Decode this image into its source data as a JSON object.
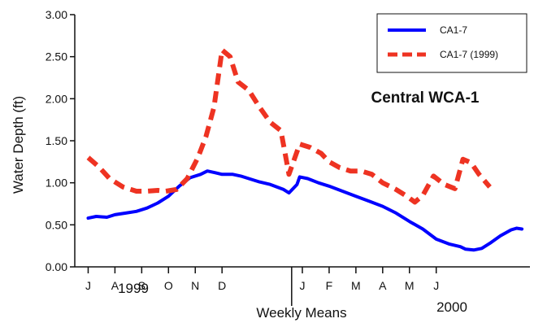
{
  "chart_data": {
    "type": "line",
    "ylabel": "Water Depth (ft)",
    "xlabel": "Weekly Means",
    "ylim": [
      0,
      3
    ],
    "yticks": [
      "0.00",
      "0.50",
      "1.00",
      "1.50",
      "2.00",
      "2.50",
      "3.00"
    ],
    "month_ticks": [
      "J",
      "A",
      "S",
      "O",
      "N",
      "D",
      "J",
      "F",
      "M",
      "A",
      "M",
      "J"
    ],
    "year_labels": [
      "1999",
      "2000"
    ],
    "annotation": "Central WCA-1",
    "legend_position": "top-right",
    "series": [
      {
        "name": "CA1-7",
        "color": "#0000ff",
        "style": "solid",
        "points": [
          [
            1.0,
            0.58
          ],
          [
            1.3,
            0.6
          ],
          [
            1.7,
            0.59
          ],
          [
            2.0,
            0.62
          ],
          [
            2.4,
            0.64
          ],
          [
            2.8,
            0.66
          ],
          [
            3.2,
            0.7
          ],
          [
            3.6,
            0.76
          ],
          [
            4.0,
            0.84
          ],
          [
            4.4,
            0.96
          ],
          [
            4.8,
            1.06
          ],
          [
            5.2,
            1.1
          ],
          [
            5.45,
            1.14
          ],
          [
            5.75,
            1.12
          ],
          [
            6.0,
            1.1
          ],
          [
            6.4,
            1.1
          ],
          [
            6.7,
            1.08
          ],
          [
            7.0,
            1.05
          ],
          [
            7.4,
            1.01
          ],
          [
            7.8,
            0.98
          ],
          [
            8.3,
            0.92
          ],
          [
            8.5,
            0.88
          ],
          [
            8.8,
            0.98
          ],
          [
            8.9,
            1.07
          ],
          [
            9.2,
            1.05
          ],
          [
            9.6,
            1.0
          ],
          [
            10.0,
            0.96
          ],
          [
            10.5,
            0.9
          ],
          [
            11.0,
            0.84
          ],
          [
            11.5,
            0.78
          ],
          [
            12.0,
            0.72
          ],
          [
            12.5,
            0.64
          ],
          [
            13.0,
            0.54
          ],
          [
            13.5,
            0.45
          ],
          [
            14.0,
            0.33
          ],
          [
            14.5,
            0.27
          ],
          [
            14.9,
            0.24
          ],
          [
            15.1,
            0.21
          ],
          [
            15.4,
            0.2
          ],
          [
            15.7,
            0.22
          ],
          [
            16.0,
            0.28
          ],
          [
            16.4,
            0.37
          ],
          [
            16.8,
            0.44
          ],
          [
            17.0,
            0.46
          ],
          [
            17.2,
            0.45
          ]
        ]
      },
      {
        "name": "CA1-7 (1999)",
        "color": "#ee3322",
        "style": "dashed",
        "points": [
          [
            1.0,
            1.3
          ],
          [
            1.4,
            1.19
          ],
          [
            1.8,
            1.05
          ],
          [
            2.3,
            0.95
          ],
          [
            2.8,
            0.9
          ],
          [
            3.2,
            0.9
          ],
          [
            3.6,
            0.91
          ],
          [
            3.9,
            0.9
          ],
          [
            4.3,
            0.92
          ],
          [
            4.7,
            1.05
          ],
          [
            5.1,
            1.3
          ],
          [
            5.4,
            1.55
          ],
          [
            5.7,
            1.9
          ],
          [
            6.0,
            2.58
          ],
          [
            6.3,
            2.5
          ],
          [
            6.6,
            2.2
          ],
          [
            7.0,
            2.1
          ],
          [
            7.4,
            1.9
          ],
          [
            7.8,
            1.72
          ],
          [
            8.2,
            1.62
          ],
          [
            8.5,
            1.1
          ],
          [
            8.9,
            1.46
          ],
          [
            9.3,
            1.42
          ],
          [
            9.7,
            1.35
          ],
          [
            10.0,
            1.25
          ],
          [
            10.4,
            1.18
          ],
          [
            10.8,
            1.14
          ],
          [
            11.2,
            1.14
          ],
          [
            11.6,
            1.1
          ],
          [
            12.0,
            1.0
          ],
          [
            12.5,
            0.92
          ],
          [
            12.9,
            0.84
          ],
          [
            13.2,
            0.77
          ],
          [
            13.5,
            0.85
          ],
          [
            13.9,
            1.08
          ],
          [
            14.3,
            0.98
          ],
          [
            14.7,
            0.93
          ],
          [
            15.0,
            1.28
          ],
          [
            15.3,
            1.24
          ],
          [
            15.6,
            1.1
          ],
          [
            16.0,
            0.95
          ]
        ]
      }
    ]
  }
}
